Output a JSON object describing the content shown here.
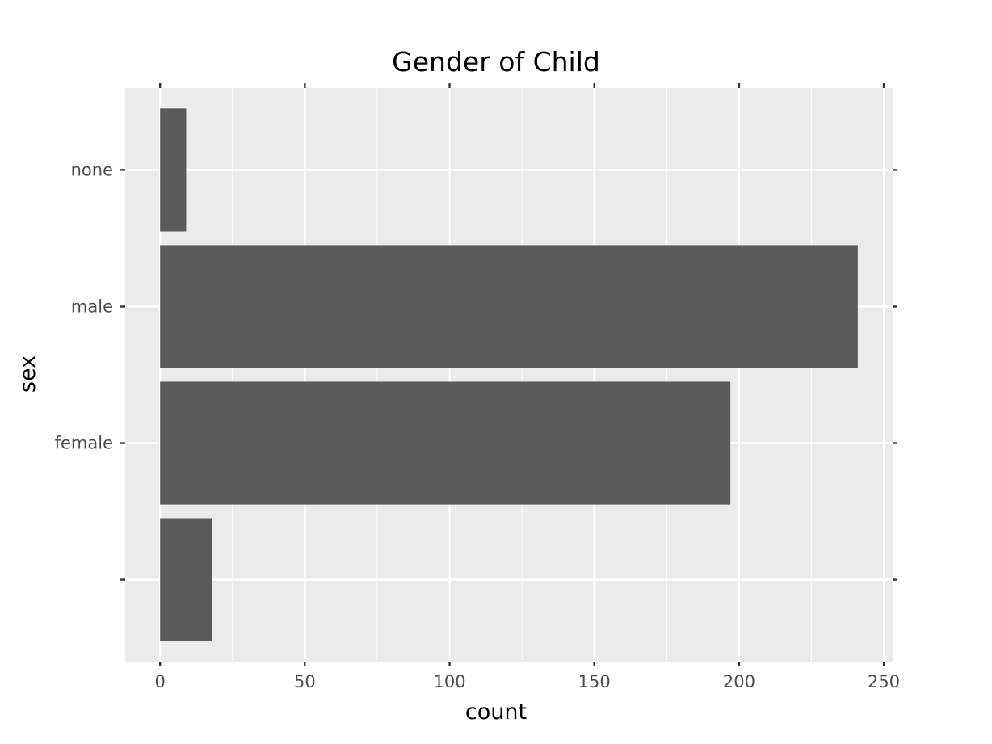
{
  "chart_data": {
    "type": "bar",
    "orientation": "horizontal",
    "title": "Gender of Child",
    "xlabel": "count",
    "ylabel": "sex",
    "categories": [
      "",
      "female",
      "male",
      "none"
    ],
    "values": [
      18,
      197,
      241,
      9
    ],
    "xlim": [
      -12.05,
      253.05
    ],
    "xticks": [
      0,
      50,
      100,
      150,
      200,
      250
    ],
    "grid": true,
    "colors": {
      "bar": "#595959",
      "panel": "#ebebeb",
      "grid_major": "#ffffff",
      "tick": "#333333",
      "tick_label": "#4d4d4d"
    }
  }
}
